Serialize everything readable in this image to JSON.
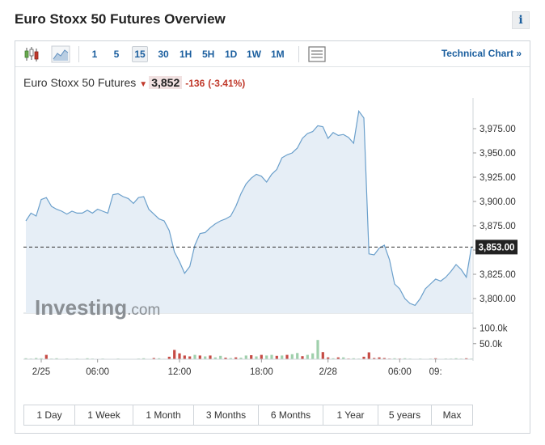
{
  "title": "Euro Stoxx 50 Futures Overview",
  "info_label": "i",
  "toolbar": {
    "intervals": [
      "1",
      "5",
      "15",
      "30",
      "1H",
      "5H",
      "1D",
      "1W",
      "1M"
    ],
    "active_interval": "15",
    "technical_chart_label": "Technical Chart »",
    "icons": [
      "candlestick-icon",
      "area-chart-icon",
      "chart-type-icon"
    ]
  },
  "header": {
    "name": "Euro Stoxx 50 Futures",
    "last": "3,852",
    "change": "-136",
    "change_pct": "(-3.41%)"
  },
  "colors": {
    "line": "#6a9fcb",
    "area": "#e6eef6",
    "down": "#c0392b",
    "vol_up": "#9fd0ac",
    "vol_down": "#c64b45",
    "link": "#1a5e9e"
  },
  "watermark": {
    "brand": "Investing",
    "suffix": ".com"
  },
  "chart_data": {
    "type": "area",
    "title": "",
    "xlabel": "",
    "ylabel": "",
    "ylim": [
      3785,
      4000
    ],
    "x_tick_labels": [
      "2/25",
      "06:00",
      "12:00",
      "18:00",
      "2/28",
      "06:00",
      "09:"
    ],
    "x_tick_index": [
      3,
      14,
      30,
      46,
      59,
      73,
      80
    ],
    "y_ticks": [
      3800,
      3825,
      3850,
      3875,
      3900,
      3925,
      3950,
      3975
    ],
    "y_tick_labels": [
      "3,800.00",
      "3,825.00",
      "3,850.00",
      "3,875.00",
      "3,900.00",
      "3,925.00",
      "3,950.00",
      "3,975.00"
    ],
    "current_value": 3853,
    "current_label": "3,853.00",
    "series": [
      {
        "values": [
          3880,
          3888,
          3885,
          3902,
          3904,
          3895,
          3892,
          3890,
          3887,
          3890,
          3888,
          3888,
          3891,
          3888,
          3892,
          3890,
          3888,
          3907,
          3908,
          3905,
          3903,
          3898,
          3904,
          3905,
          3892,
          3887,
          3882,
          3880,
          3870,
          3848,
          3838,
          3826,
          3833,
          3855,
          3867,
          3868,
          3873,
          3877,
          3880,
          3882,
          3885,
          3895,
          3908,
          3918,
          3924,
          3928,
          3926,
          3920,
          3928,
          3933,
          3945,
          3948,
          3950,
          3955,
          3965,
          3970,
          3972,
          3978,
          3977,
          3965,
          3971,
          3968,
          3969,
          3966,
          3960,
          3993,
          3986,
          3846,
          3845,
          3852,
          3855,
          3840,
          3815,
          3810,
          3800,
          3795,
          3793,
          3800,
          3810,
          3815,
          3820,
          3818,
          3822,
          3828,
          3835,
          3830,
          3822,
          3853
        ]
      }
    ],
    "volume": {
      "labels": [
        "100.0k",
        "50.0k"
      ],
      "ticks": [
        100000,
        50000
      ],
      "max": 130000,
      "values": [
        3000,
        2000,
        4000,
        3000,
        14000,
        2000,
        3000,
        1000,
        2000,
        1000,
        2000,
        1000,
        3000,
        2000,
        1000,
        2000,
        1000,
        1000,
        2000,
        1000,
        1000,
        1000,
        2000,
        3000,
        1000,
        4000,
        3000,
        1500,
        8000,
        30000,
        19000,
        12000,
        9000,
        14000,
        12000,
        9000,
        12000,
        6000,
        11000,
        5000,
        4000,
        6000,
        5000,
        12000,
        13000,
        9000,
        14000,
        12000,
        14000,
        11000,
        12000,
        14000,
        16000,
        20000,
        10000,
        14000,
        19000,
        62000,
        23000,
        6000,
        3000,
        6000,
        6000,
        2000,
        3000,
        2000,
        8000,
        22000,
        4000,
        6000,
        4000,
        2000,
        3000,
        2000,
        3000,
        2000,
        1000,
        2000,
        1000,
        2000,
        3000,
        1000,
        2000,
        2000,
        3000,
        2000,
        3000,
        2000
      ],
      "down": [
        0,
        0,
        0,
        0,
        1,
        0,
        0,
        0,
        0,
        0,
        0,
        0,
        0,
        0,
        0,
        0,
        0,
        0,
        0,
        0,
        0,
        0,
        0,
        0,
        0,
        1,
        0,
        0,
        1,
        1,
        1,
        1,
        1,
        0,
        1,
        0,
        1,
        0,
        0,
        1,
        0,
        1,
        0,
        0,
        1,
        0,
        1,
        0,
        0,
        1,
        0,
        1,
        0,
        0,
        1,
        0,
        0,
        0,
        1,
        1,
        0,
        1,
        0,
        1,
        0,
        0,
        1,
        1,
        1,
        1,
        1,
        1,
        0,
        1,
        0,
        0,
        1,
        0,
        0,
        0,
        1,
        0,
        0,
        0,
        0,
        0,
        1,
        0
      ]
    }
  },
  "ranges": [
    "1 Day",
    "1 Week",
    "1 Month",
    "3 Months",
    "6 Months",
    "1 Year",
    "5 years",
    "Max"
  ]
}
